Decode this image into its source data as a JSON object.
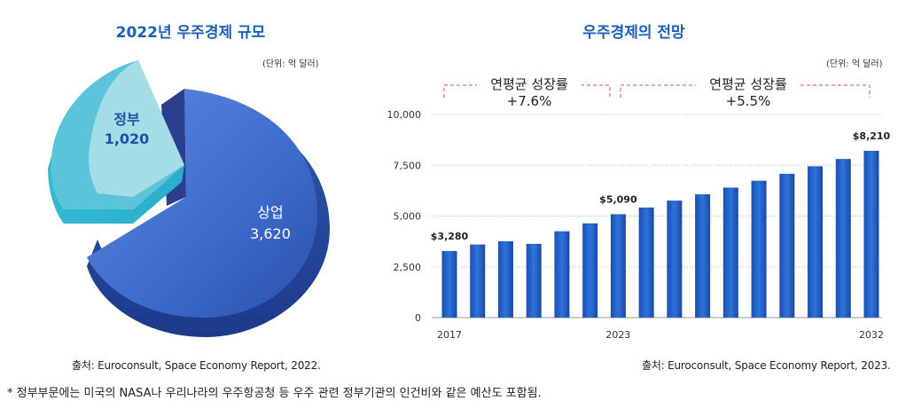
{
  "pie_chart": {
    "title": "2022년 우주경제 규모",
    "unit": "(단위: 억 달러)",
    "source": "출처: Euroconsult, Space Economy Report, 2022."
  },
  "bar_chart": {
    "title": "우주경제의 전망",
    "unit": "(단위: 억 달러)",
    "source": "출처: Euroconsult, Space Economy Report, 2023.",
    "growth_1": {
      "label": "연평균 성장률",
      "value": "+7.6%"
    },
    "growth_2": {
      "label": "연평균 성장률",
      "value": "+5.5%"
    }
  },
  "footnote": "* 정부부문에는 미국의 NASA나 우리나라의 우주항공청 등 우주 관련 정부기관의 인건비와 같은 예산도 포함됨.",
  "colors": {
    "title": "#1a5fb8",
    "bar_top": "#2c6fd6",
    "bar_bottom": "#123f9a",
    "pie_gov": "#9fdbe4",
    "pie_com": "#3f6fd1"
  },
  "chart_data": [
    {
      "type": "pie",
      "title": "2022년 우주경제 규모",
      "unit": "(단위: 억 달러)",
      "slices": [
        {
          "name": "정부",
          "value": 1020,
          "label": "1,020"
        },
        {
          "name": "상업",
          "value": 3620,
          "label": "3,620"
        }
      ]
    },
    {
      "type": "bar",
      "title": "우주경제의 전망",
      "ylabel": "(단위: 억 달러)",
      "ylim": [
        0,
        10000
      ],
      "yticks": [
        0,
        2500,
        5000,
        7500,
        10000
      ],
      "ytick_labels": [
        "0",
        "2,500",
        "5,000",
        "7,500",
        "10,000"
      ],
      "categories": [
        "2017",
        "2018",
        "2019",
        "2020",
        "2021",
        "2022",
        "2023",
        "2024",
        "2025",
        "2026",
        "2027",
        "2028",
        "2029",
        "2030",
        "2031",
        "2032"
      ],
      "xtick_labels": {
        "2017": "2017",
        "2023": "2023",
        "2032": "2032"
      },
      "values": [
        3280,
        3600,
        3760,
        3630,
        4250,
        4640,
        5090,
        5420,
        5760,
        6070,
        6400,
        6740,
        7080,
        7450,
        7810,
        8210
      ],
      "data_labels": {
        "2017": "$3,280",
        "2023": "$5,090",
        "2032": "$8,210"
      }
    }
  ]
}
